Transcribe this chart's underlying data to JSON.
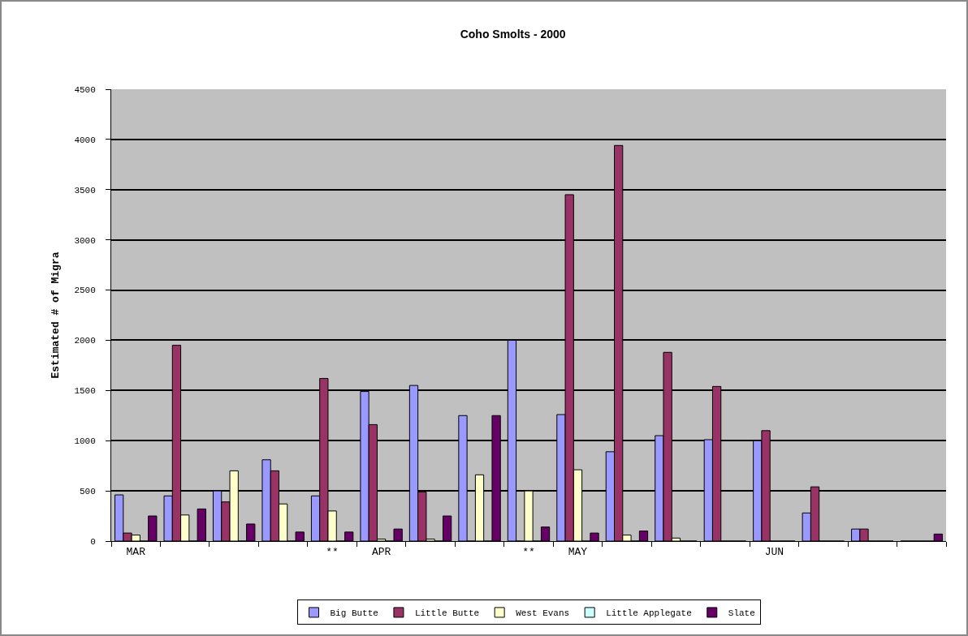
{
  "chart_data": {
    "type": "bar",
    "title": "Coho Smolts - 2000",
    "ylabel": "Estimated # of Migra",
    "categories": [
      "MAR",
      null,
      null,
      null,
      "**",
      "APR",
      null,
      null,
      "**",
      "MAY",
      null,
      null,
      null,
      "JUN",
      null,
      null,
      null
    ],
    "series": [
      {
        "name": "Big Butte",
        "color": "#9999ff",
        "values": [
          460,
          450,
          500,
          810,
          450,
          1490,
          1550,
          1250,
          2000,
          1260,
          890,
          1050,
          1010,
          1000,
          280,
          120,
          0
        ]
      },
      {
        "name": "Little Butte",
        "color": "#993366",
        "values": [
          80,
          1950,
          390,
          700,
          1620,
          1160,
          490,
          0,
          0,
          3450,
          3940,
          1880,
          1540,
          1100,
          540,
          120,
          0
        ]
      },
      {
        "name": "West Evans",
        "color": "#ffffcc",
        "values": [
          60,
          260,
          700,
          370,
          300,
          20,
          20,
          660,
          500,
          710,
          60,
          30,
          0,
          0,
          0,
          0,
          0
        ]
      },
      {
        "name": "Little Applegate",
        "color": "#ccffff",
        "values": [
          0,
          0,
          0,
          0,
          0,
          0,
          0,
          0,
          0,
          0,
          0,
          0,
          0,
          0,
          0,
          0,
          0
        ]
      },
      {
        "name": "Slate",
        "color": "#660066",
        "values": [
          250,
          320,
          170,
          90,
          90,
          120,
          250,
          1250,
          140,
          80,
          100,
          0,
          0,
          0,
          0,
          0,
          70
        ]
      }
    ],
    "ylim": [
      0,
      4500
    ],
    "yticks": [
      0,
      500,
      1000,
      1500,
      2000,
      2500,
      3000,
      3500,
      4000,
      4500
    ],
    "grid": "y",
    "legend": "bottom"
  }
}
